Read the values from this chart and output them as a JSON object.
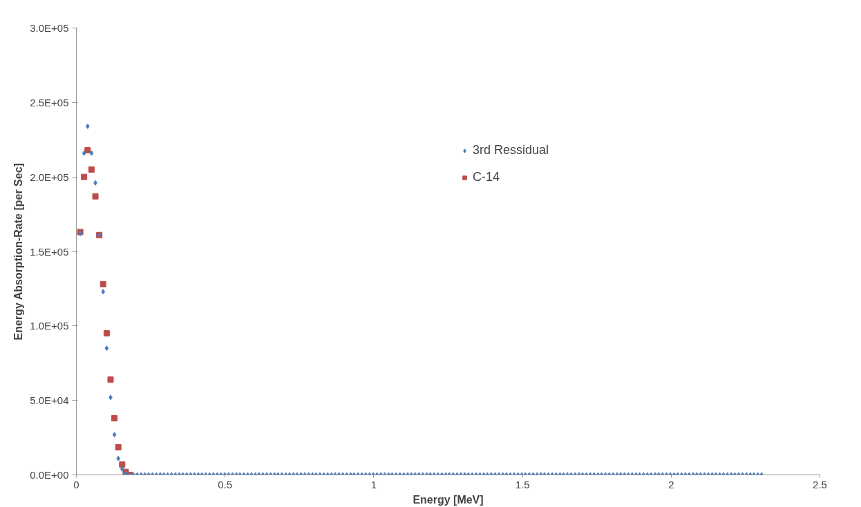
{
  "chart_data": {
    "type": "scatter",
    "xlabel": "Energy [MeV]",
    "ylabel": "Energy Absorption-Rate [per Sec]",
    "xlim": [
      0,
      2.5
    ],
    "xticks": [
      0,
      0.5,
      1,
      1.5,
      2,
      2.5
    ],
    "ylim": [
      0,
      300000
    ],
    "yticks": [
      {
        "value": 0,
        "label": "0.0E+00"
      },
      {
        "value": 50000,
        "label": "5.0E+04"
      },
      {
        "value": 100000,
        "label": "1.0E+05"
      },
      {
        "value": 150000,
        "label": "1.5E+05"
      },
      {
        "value": 200000,
        "label": "2.0E+05"
      },
      {
        "value": 250000,
        "label": "2.5E+05"
      },
      {
        "value": 300000,
        "label": "3.0E+05"
      }
    ],
    "grid": false,
    "legend": "top",
    "series": [
      {
        "name": "3rd Ressidual",
        "color": "#4a7ebb",
        "marker": "diamond",
        "x": [
          0.013,
          0.026,
          0.038,
          0.051,
          0.064,
          0.077,
          0.09,
          0.102,
          0.115,
          0.128,
          0.141,
          0.154,
          0.166,
          0.179,
          0.192,
          0.205,
          0.218,
          0.23,
          0.243,
          0.256,
          0.269,
          0.282,
          0.294,
          0.307,
          0.32,
          0.333,
          0.346,
          0.358,
          0.371,
          0.384,
          0.397,
          0.41,
          0.422,
          0.435,
          0.448,
          0.461,
          0.474,
          0.486,
          0.499,
          0.512,
          0.525,
          0.538,
          0.55,
          0.563,
          0.576,
          0.589,
          0.602,
          0.614,
          0.627,
          0.64,
          0.653,
          0.666,
          0.678,
          0.691,
          0.704,
          0.717,
          0.73,
          0.742,
          0.755,
          0.768,
          0.781,
          0.794,
          0.806,
          0.819,
          0.832,
          0.845,
          0.858,
          0.87,
          0.883,
          0.896,
          0.909,
          0.922,
          0.934,
          0.947,
          0.96,
          0.973,
          0.986,
          0.998,
          1.011,
          1.024,
          1.037,
          1.05,
          1.062,
          1.075,
          1.088,
          1.101,
          1.114,
          1.126,
          1.139,
          1.152,
          1.165,
          1.178,
          1.19,
          1.203,
          1.216,
          1.229,
          1.242,
          1.254,
          1.267,
          1.28,
          1.293,
          1.306,
          1.318,
          1.331,
          1.344,
          1.357,
          1.37,
          1.382,
          1.395,
          1.408,
          1.421,
          1.434,
          1.446,
          1.459,
          1.472,
          1.485,
          1.498,
          1.51,
          1.523,
          1.536,
          1.549,
          1.562,
          1.574,
          1.587,
          1.6,
          1.613,
          1.626,
          1.638,
          1.651,
          1.664,
          1.677,
          1.69,
          1.702,
          1.715,
          1.728,
          1.741,
          1.754,
          1.766,
          1.779,
          1.792,
          1.805,
          1.818,
          1.83,
          1.843,
          1.856,
          1.869,
          1.882,
          1.894,
          1.907,
          1.92,
          1.933,
          1.946,
          1.958,
          1.971,
          1.984,
          1.997,
          2.01,
          2.022,
          2.035,
          2.048,
          2.061,
          2.074,
          2.086,
          2.099,
          2.112,
          2.125,
          2.138,
          2.15,
          2.163,
          2.176,
          2.189,
          2.202,
          2.214,
          2.227,
          2.24,
          2.253,
          2.266,
          2.278,
          2.291,
          2.304
        ],
        "values": [
          162000,
          216000,
          234000,
          216000,
          196000,
          161000,
          123000,
          85000,
          52000,
          27000,
          11000,
          4000,
          1000,
          0,
          0,
          0,
          0,
          0,
          0,
          0,
          0,
          0,
          0,
          0,
          0,
          0,
          0,
          0,
          0,
          0,
          0,
          0,
          0,
          0,
          0,
          0,
          0,
          0,
          0,
          0,
          0,
          0,
          0,
          0,
          0,
          0,
          0,
          0,
          0,
          0,
          0,
          0,
          0,
          0,
          0,
          0,
          0,
          0,
          0,
          0,
          0,
          0,
          0,
          0,
          0,
          0,
          0,
          0,
          0,
          0,
          0,
          0,
          0,
          0,
          0,
          0,
          0,
          0,
          0,
          0,
          0,
          0,
          0,
          0,
          0,
          0,
          0,
          0,
          0,
          0,
          0,
          0,
          0,
          0,
          0,
          0,
          0,
          0,
          0,
          0,
          0,
          0,
          0,
          0,
          0,
          0,
          0,
          0,
          0,
          0,
          0,
          0,
          0,
          0,
          0,
          0,
          0,
          0,
          0,
          0,
          0,
          0,
          0,
          0,
          0,
          0,
          0,
          0,
          0,
          0,
          0,
          0,
          0,
          0,
          0,
          0,
          0,
          0,
          0,
          0,
          0,
          0,
          0,
          0,
          0,
          0,
          0,
          0,
          0,
          0,
          0,
          0,
          0,
          0,
          0,
          0,
          0,
          0,
          0,
          0,
          0,
          0,
          0,
          0,
          0,
          0,
          0,
          0,
          0,
          0,
          0,
          0,
          0,
          0,
          0,
          0,
          0,
          0,
          0,
          0
        ]
      },
      {
        "name": "C-14",
        "color": "#be4b48",
        "marker": "square",
        "x": [
          0.013,
          0.026,
          0.038,
          0.051,
          0.064,
          0.077,
          0.09,
          0.102,
          0.115,
          0.128,
          0.141,
          0.154,
          0.166,
          0.179
        ],
        "values": [
          163000,
          200000,
          218000,
          205000,
          187000,
          161000,
          128000,
          95000,
          64000,
          38000,
          18500,
          7000,
          2000,
          0
        ]
      }
    ]
  }
}
